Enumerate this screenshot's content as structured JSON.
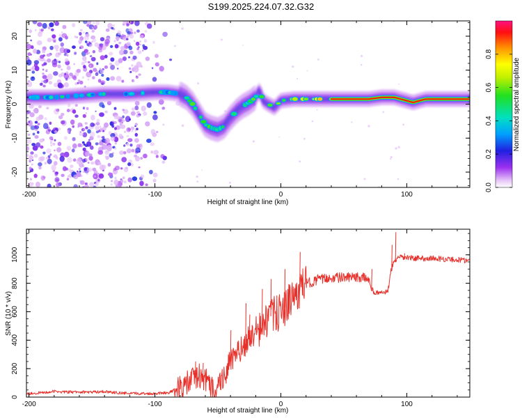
{
  "title": "S199.2025.224.07.32.G32",
  "chart_data": [
    {
      "type": "heatmap",
      "name": "spectrogram",
      "title": "",
      "xlabel": "Height of straight line (km)",
      "ylabel": "Frequency (Hz)",
      "xlim": [
        -202,
        150
      ],
      "ylim": [
        -24.5,
        24.5
      ],
      "xticks": [
        -200,
        -100,
        0,
        100
      ],
      "yticks": [
        -20,
        -10,
        0,
        10,
        20
      ],
      "ridge": {
        "x": [
          -200,
          -180,
          -160,
          -140,
          -120,
          -100,
          -90,
          -80,
          -75,
          -70,
          -65,
          -60,
          -55,
          -50,
          -45,
          -40,
          -35,
          -30,
          -25,
          -20,
          -17,
          -14,
          -10,
          -5,
          0,
          10,
          20,
          30,
          40,
          50,
          60,
          70,
          80,
          85,
          90,
          95,
          100,
          105,
          110,
          115,
          120,
          130,
          140,
          150
        ],
        "y": [
          2,
          2,
          2.5,
          3,
          3,
          3.5,
          3.5,
          3,
          2,
          0,
          -3,
          -6,
          -7,
          -7.5,
          -6.5,
          -4,
          -2,
          -0.5,
          0.5,
          2,
          4,
          1,
          0,
          -1,
          1,
          1.5,
          1.5,
          1.5,
          1.5,
          1.5,
          1.5,
          1.5,
          2,
          2,
          2,
          1.5,
          1,
          0.5,
          1,
          1.5,
          1.5,
          1.5,
          1.5,
          1.5
        ]
      },
      "colorbar": {
        "label": "Normalized spectral amplitude",
        "range": [
          0,
          1
        ],
        "ticks": [
          0.0,
          0.2,
          0.4,
          0.6,
          0.8
        ],
        "tick_labels": [
          "0.0",
          "0.2",
          "0.4",
          "0.6",
          "0.8"
        ]
      }
    },
    {
      "type": "line",
      "name": "snr",
      "title": "",
      "xlabel": "Height of straight line (km)",
      "ylabel": "SNR (10 * v/v)",
      "xlim": [
        -202,
        150
      ],
      "ylim": [
        0,
        1180
      ],
      "xticks": [
        -200,
        -100,
        0,
        100
      ],
      "yticks": [
        0,
        200,
        400,
        600,
        800,
        1000
      ],
      "color": "#e8302a",
      "series": [
        {
          "name": "SNR",
          "x": [
            -202,
            -190,
            -180,
            -170,
            -160,
            -150,
            -140,
            -130,
            -120,
            -110,
            -100,
            -95,
            -90,
            -85,
            -80,
            -75,
            -70,
            -65,
            -60,
            -55,
            -50,
            -45,
            -40,
            -35,
            -30,
            -25,
            -20,
            -15,
            -10,
            -5,
            0,
            5,
            10,
            15,
            20,
            25,
            30,
            35,
            40,
            45,
            50,
            55,
            60,
            65,
            70,
            72,
            75,
            80,
            85,
            87,
            90,
            95,
            100,
            110,
            120,
            130,
            140,
            150
          ],
          "y": [
            25,
            30,
            40,
            35,
            35,
            35,
            40,
            30,
            25,
            25,
            25,
            30,
            30,
            45,
            60,
            90,
            130,
            150,
            120,
            60,
            80,
            150,
            250,
            300,
            350,
            420,
            450,
            480,
            560,
            580,
            600,
            650,
            700,
            750,
            800,
            810,
            830,
            830,
            840,
            840,
            840,
            840,
            840,
            840,
            830,
            760,
            730,
            735,
            740,
            870,
            960,
            980,
            980,
            975,
            975,
            970,
            965,
            960
          ]
        }
      ],
      "spikes": [
        {
          "x": -68,
          "y": 250
        },
        {
          "x": -62,
          "y": 240
        },
        {
          "x": -40,
          "y": 470
        },
        {
          "x": -28,
          "y": 660
        },
        {
          "x": -25,
          "y": 580
        },
        {
          "x": -15,
          "y": 760
        },
        {
          "x": -8,
          "y": 830
        },
        {
          "x": 3,
          "y": 900
        },
        {
          "x": 10,
          "y": 760
        },
        {
          "x": 15,
          "y": 1020
        },
        {
          "x": 72,
          "y": 900
        },
        {
          "x": 88,
          "y": 1070
        },
        {
          "x": 91,
          "y": 1160
        },
        {
          "x": 98,
          "y": 1010
        }
      ]
    }
  ]
}
